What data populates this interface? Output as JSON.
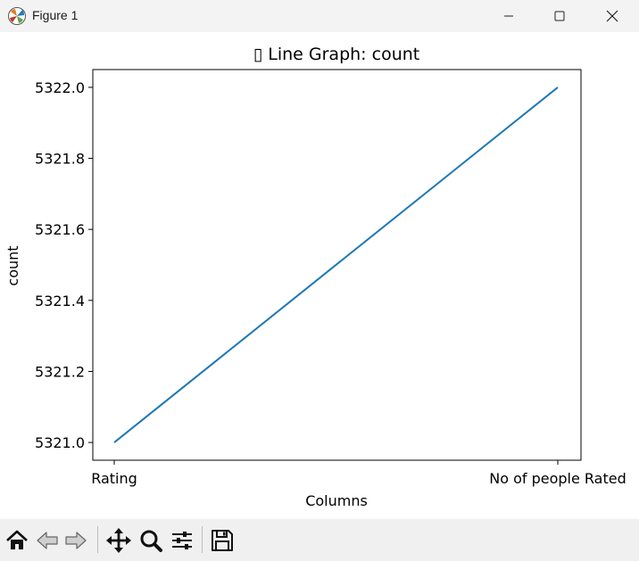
{
  "window": {
    "title": "Figure 1",
    "controls": [
      "minimize",
      "maximize",
      "close"
    ]
  },
  "chart_data": {
    "type": "line",
    "title": "▯ Line Graph: count",
    "xlabel": "Columns",
    "ylabel": "count",
    "categories": [
      "Rating",
      "No of people Rated"
    ],
    "series": [
      {
        "values": [
          5321.0,
          5322.0
        ],
        "color": "#1f77b4"
      }
    ],
    "ylim": [
      5320.95,
      5322.05
    ],
    "yticks": [
      5321.0,
      5321.2,
      5321.4,
      5321.6,
      5321.8,
      5322.0
    ],
    "ytick_labels": [
      "5321.0",
      "5321.2",
      "5321.4",
      "5321.6",
      "5321.8",
      "5322.0"
    ],
    "grid": false
  },
  "toolbar": {
    "tools": [
      {
        "name": "home-icon",
        "label": "Home"
      },
      {
        "name": "back-icon",
        "label": "Back"
      },
      {
        "name": "forward-icon",
        "label": "Forward"
      },
      {
        "name": "pan-icon",
        "label": "Pan"
      },
      {
        "name": "zoom-icon",
        "label": "Zoom"
      },
      {
        "name": "configure-subplots-icon",
        "label": "Configure subplots"
      },
      {
        "name": "save-icon",
        "label": "Save"
      }
    ]
  }
}
